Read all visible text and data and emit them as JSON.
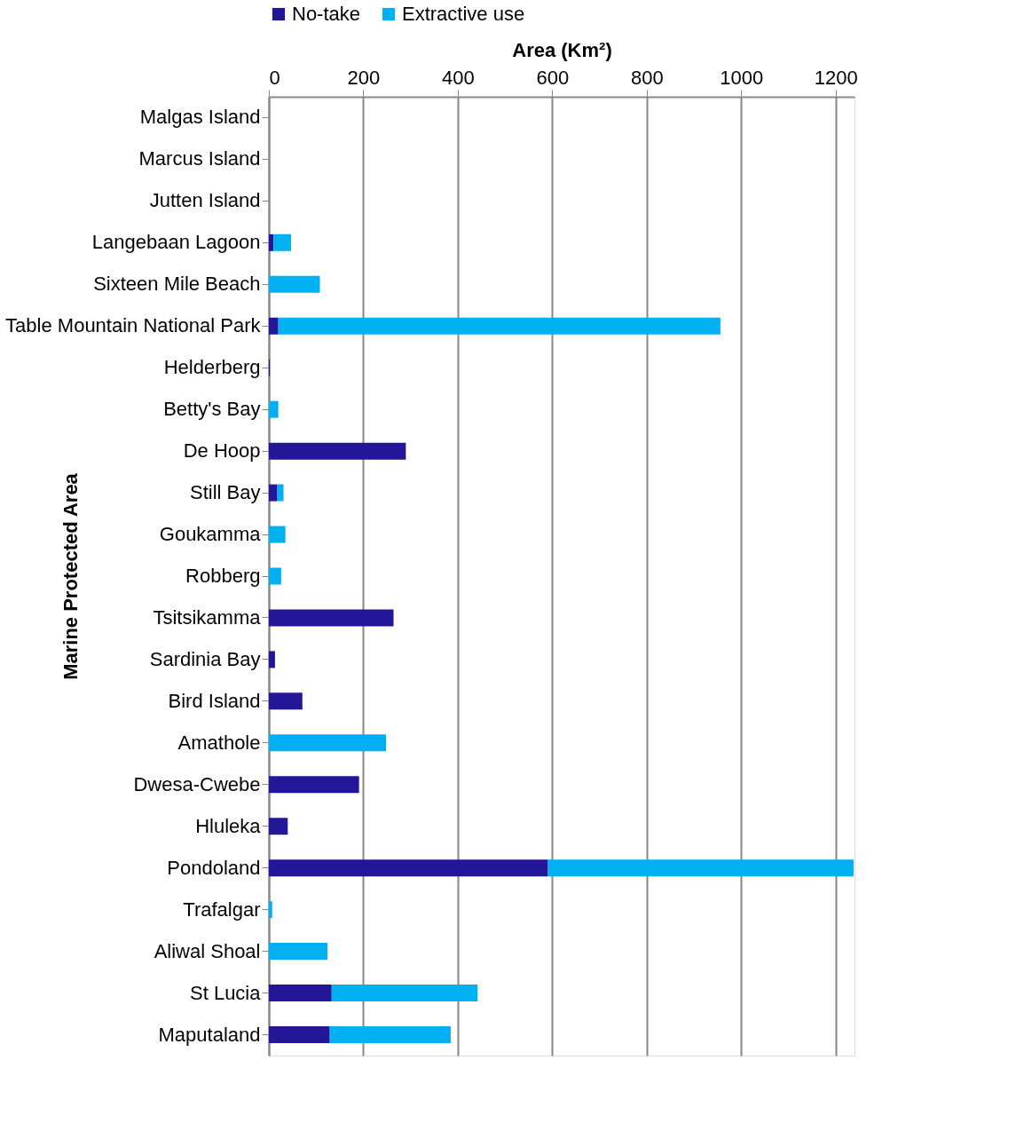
{
  "chart_data": {
    "type": "bar",
    "orientation": "horizontal",
    "stacked": true,
    "xlabel": "Area (Km²)",
    "ylabel": "Marine Protected Area",
    "categories": [
      "Malgas Island",
      "Marcus Island",
      "Jutten Island",
      "Langebaan Lagoon",
      "Sixteen Mile Beach",
      "Table Mountain National Park",
      "Helderberg",
      "Betty's Bay",
      "De Hoop",
      "Still Bay",
      "Goukamma",
      "Robberg",
      "Tsitsikamma",
      "Sardinia Bay",
      "Bird Island",
      "Amathole",
      "Dwesa-Cwebe",
      "Hluleka",
      "Pondoland",
      "Trafalgar",
      "Aliwal Shoal",
      "St Lucia",
      "Maputaland"
    ],
    "series": [
      {
        "name": "No-take",
        "color": "#231698",
        "values": [
          0,
          0,
          0,
          10,
          0,
          20,
          2,
          0,
          290,
          18,
          0,
          0,
          264,
          13,
          71,
          0,
          191,
          40,
          591,
          0,
          0,
          133,
          129
        ]
      },
      {
        "name": "Extractive use",
        "color": "#00b0f0",
        "values": [
          0,
          0,
          0,
          37,
          108,
          936,
          0,
          20,
          0,
          13,
          35,
          26,
          0,
          0,
          0,
          248,
          0,
          0,
          647,
          7,
          124,
          309,
          256
        ]
      }
    ],
    "xlim": [
      0,
      1240
    ],
    "xticks": [
      0,
      200,
      400,
      600,
      800,
      1000,
      1200
    ],
    "grid": "x",
    "legend": "top"
  }
}
